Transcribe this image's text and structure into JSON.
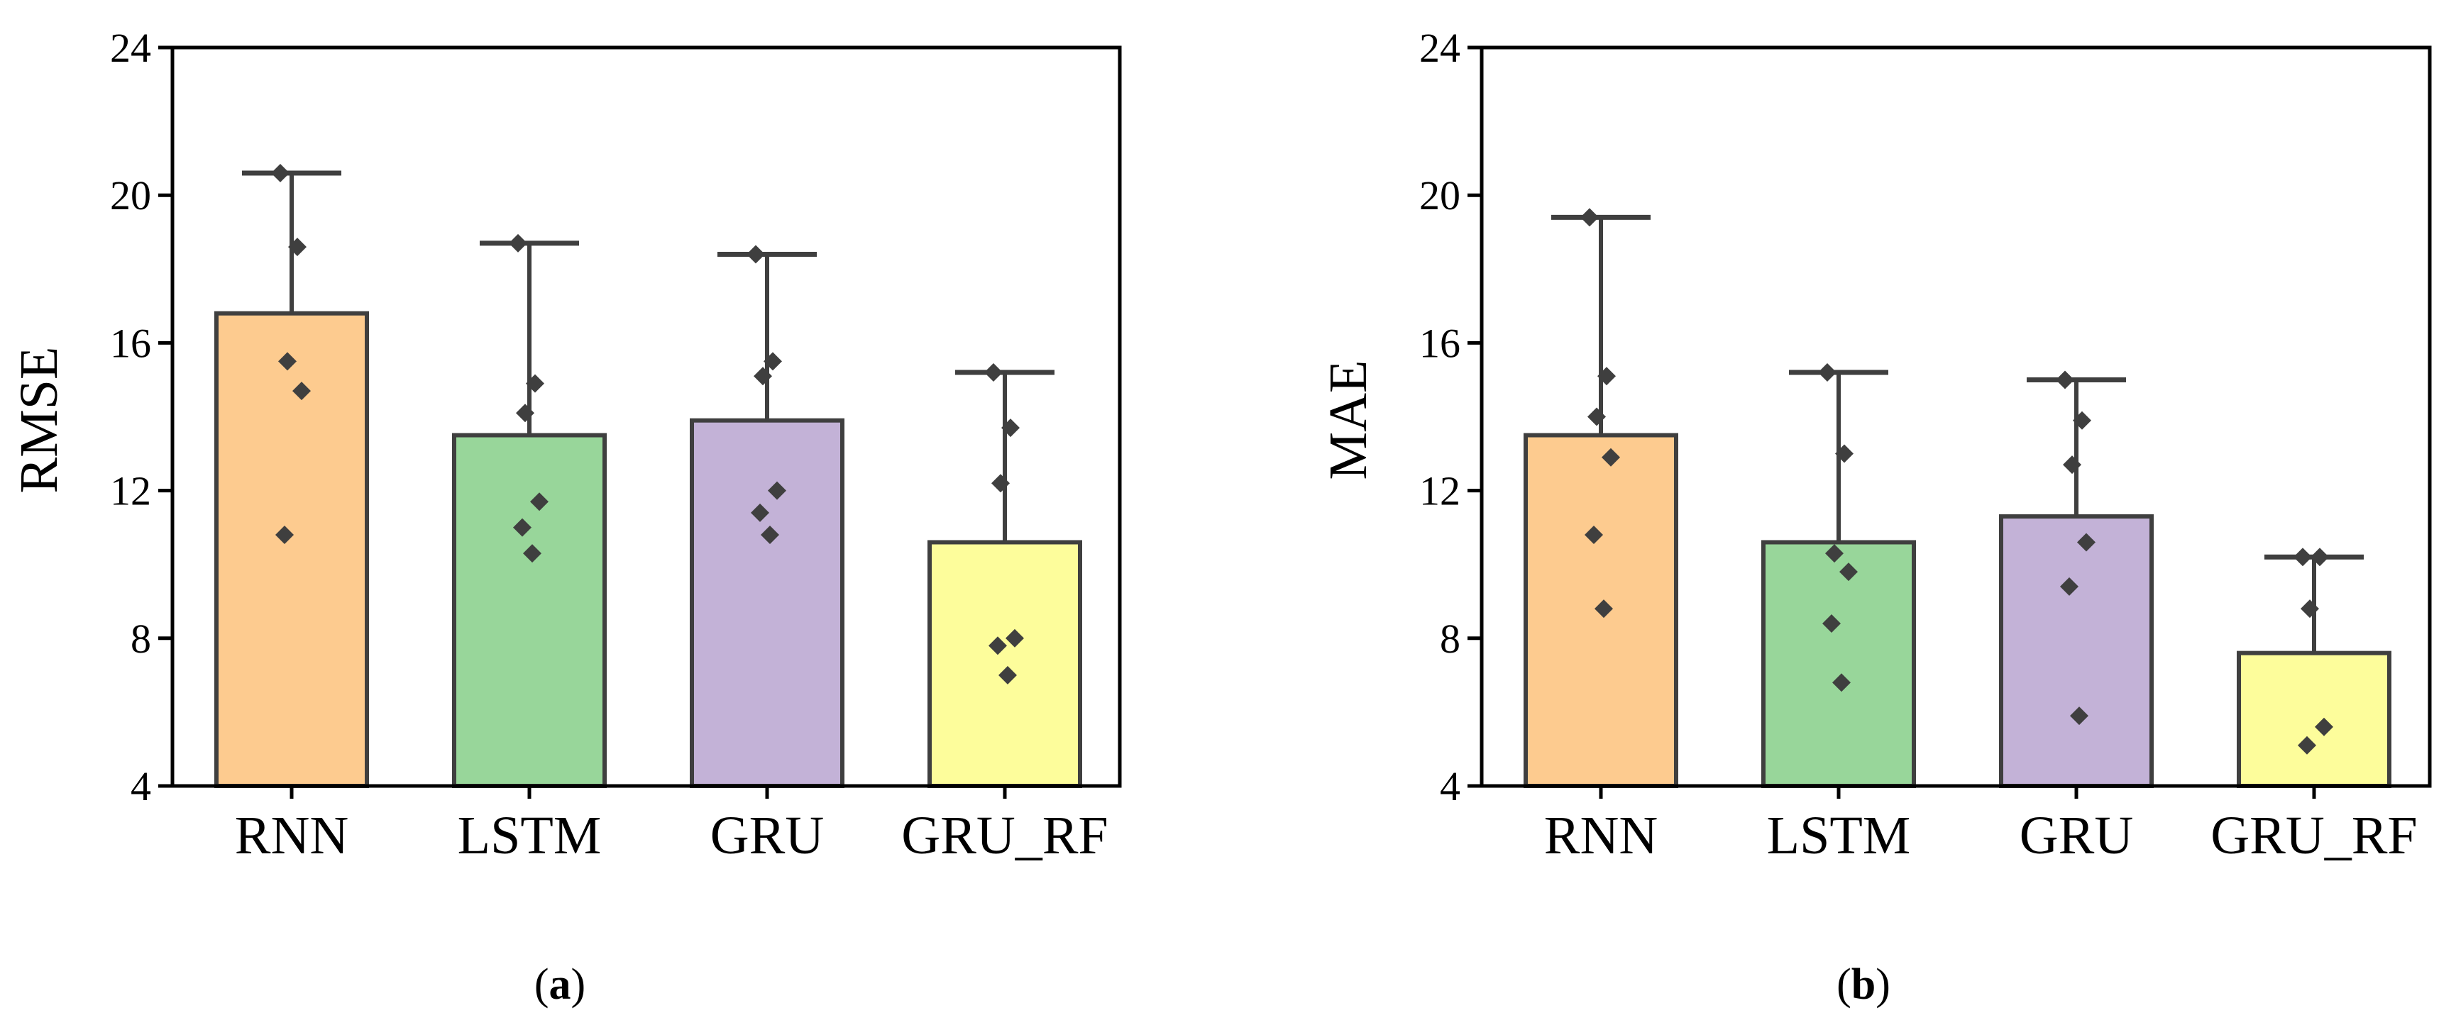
{
  "chart_data": [
    {
      "type": "bar",
      "panel_label": "a",
      "title": "",
      "xlabel": "",
      "ylabel": "RMSE",
      "ylim": [
        4,
        24
      ],
      "yticks": [
        4,
        8,
        12,
        16,
        20,
        24
      ],
      "ytick_labels": [
        "4",
        "8",
        "12",
        "16",
        "20",
        "24"
      ],
      "categories": [
        "RNN",
        "LSTM",
        "GRU",
        "GRU_RF"
      ],
      "values": [
        16.8,
        13.5,
        13.9,
        10.6
      ],
      "error_upper": [
        20.6,
        18.7,
        18.4,
        15.2
      ],
      "points": [
        [
          20.6,
          18.6,
          15.5,
          14.7,
          10.8
        ],
        [
          18.7,
          14.9,
          14.1,
          11.7,
          11.0,
          10.3
        ],
        [
          18.4,
          15.5,
          15.1,
          12.0,
          11.4,
          10.8
        ],
        [
          15.2,
          13.7,
          12.2,
          8.0,
          7.8,
          7.0
        ]
      ],
      "grid": false,
      "legend": "none"
    },
    {
      "type": "bar",
      "panel_label": "b",
      "title": "",
      "xlabel": "",
      "ylabel": "MAE",
      "ylim": [
        4,
        24
      ],
      "yticks": [
        4,
        8,
        12,
        16,
        20,
        24
      ],
      "ytick_labels": [
        "4",
        "8",
        "12",
        "16",
        "20",
        "24"
      ],
      "categories": [
        "RNN",
        "LSTM",
        "GRU",
        "GRU_RF"
      ],
      "values": [
        13.5,
        10.6,
        11.3,
        7.6
      ],
      "error_upper": [
        19.4,
        15.2,
        15.0,
        10.2
      ],
      "points": [
        [
          19.4,
          15.1,
          14.0,
          12.9,
          10.8,
          8.8
        ],
        [
          15.2,
          13.0,
          10.3,
          9.8,
          8.4,
          6.8
        ],
        [
          15.0,
          13.9,
          12.7,
          10.6,
          9.4,
          5.9
        ],
        [
          10.2,
          10.2,
          8.8,
          5.6,
          5.1
        ]
      ],
      "grid": false,
      "legend": "none"
    }
  ],
  "colors": {
    "bars": [
      "#FDCB8F",
      "#98D69A",
      "#C3B2D7",
      "#FDFD9B"
    ],
    "edge": "#3f3f3f",
    "points": "#3f3f3f",
    "axis": "#000000"
  }
}
